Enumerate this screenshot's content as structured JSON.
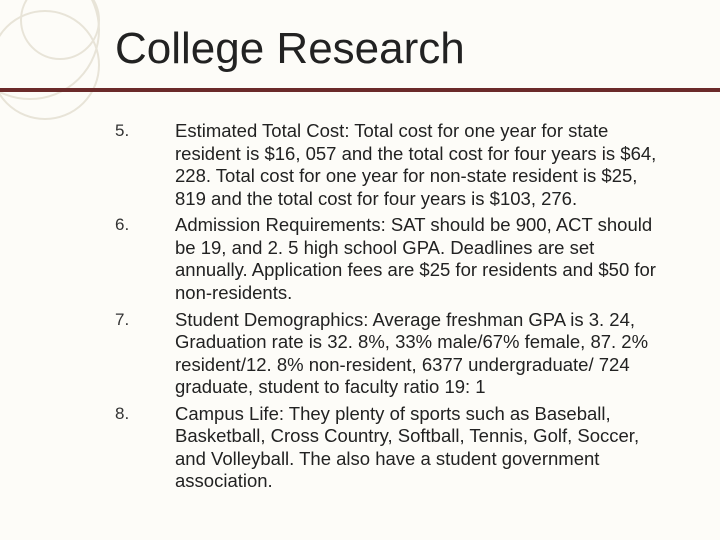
{
  "title": "College Research",
  "items": [
    {
      "number": "5.",
      "text": "Estimated Total Cost: Total cost for one year for state resident is $16, 057 and the total cost for four years is $64, 228. Total cost for one year for non-state resident is $25, 819 and the total cost for four years is $103, 276."
    },
    {
      "number": "6.",
      "text": "Admission Requirements: SAT should be 900, ACT should be 19, and 2. 5 high school GPA. Deadlines are set annually. Application fees are $25 for residents and $50 for non-residents."
    },
    {
      "number": "7.",
      "text": "Student Demographics: Average freshman GPA is 3. 24, Graduation rate is 32. 8%, 33% male/67% female, 87. 2% resident/12. 8% non-resident, 6377 undergraduate/ 724 graduate, student to faculty ratio 19: 1"
    },
    {
      "number": "8.",
      "text": "Campus Life: They plenty of sports such as Baseball, Basketball, Cross Country, Softball, Tennis, Golf, Soccer, and Volleyball. The also have a student government association."
    }
  ],
  "colors": {
    "background": "#fdfcf8",
    "underline": "#6b2a2a",
    "decoration": "#e8e4d8",
    "text": "#222222"
  },
  "typography": {
    "title_fontsize": 44,
    "body_fontsize": 18.5,
    "number_fontsize": 17,
    "line_height": 1.22,
    "font_family": "Arial"
  }
}
